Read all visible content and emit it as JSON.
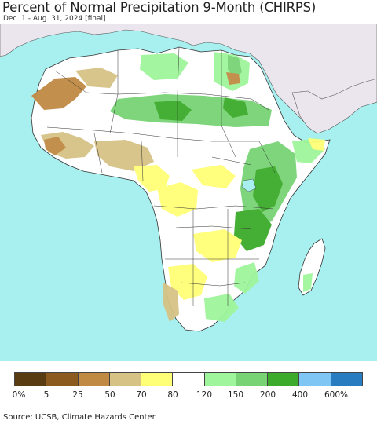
{
  "title": "Percent of Normal Precipitation 9-Month (CHIRPS)",
  "subtitle": "Dec. 1 - Aug. 31, 2024 [final]",
  "source": "Source: UCSB, Climate Hazards Center",
  "map": {
    "region": "Africa",
    "ocean_color": "#a8f0f0",
    "non_region_land_color": "#ebe6ee",
    "land_base_color": "#ffffff"
  },
  "legend": {
    "colors": [
      "#5a3c13",
      "#8b5a1e",
      "#c08a44",
      "#d6c285",
      "#ffff77",
      "#ffffff",
      "#9ff59b",
      "#78d374",
      "#3caa2a",
      "#7fc6f5",
      "#2a7cc0"
    ],
    "tick_labels": [
      "0%",
      "5",
      "25",
      "50",
      "70",
      "80",
      "120",
      "150",
      "200",
      "400",
      "600%"
    ]
  }
}
